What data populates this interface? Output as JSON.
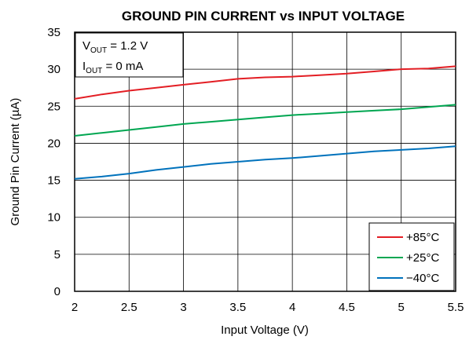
{
  "chart_data": {
    "type": "line",
    "title": "GROUND PIN CURRENT vs INPUT VOLTAGE",
    "xlabel": "Input Voltage (V)",
    "ylabel": "Ground Pin Current (µA)",
    "xlim": [
      2,
      5.5
    ],
    "ylim": [
      0,
      35
    ],
    "xticks": [
      "2",
      "2.5",
      "3",
      "3.5",
      "4",
      "4.5",
      "5",
      "5.5"
    ],
    "yticks": [
      "0",
      "5",
      "10",
      "15",
      "20",
      "25",
      "30",
      "35"
    ],
    "grid": true,
    "legend_position": "bottom-right",
    "annotation": {
      "vout_main": "V",
      "vout_sub": "OUT",
      "vout_value": " = 1.2 V",
      "iout_main": "I",
      "iout_sub": "OUT",
      "iout_value": " = 0 mA"
    },
    "series": [
      {
        "name": "+85°C",
        "color": "#e31e24",
        "x": [
          2.0,
          2.25,
          2.5,
          2.75,
          3.0,
          3.25,
          3.5,
          3.75,
          4.0,
          4.25,
          4.5,
          4.75,
          5.0,
          5.25,
          5.5
        ],
        "y": [
          26.0,
          26.6,
          27.1,
          27.5,
          27.9,
          28.3,
          28.7,
          28.9,
          29.0,
          29.2,
          29.4,
          29.7,
          30.0,
          30.1,
          30.4
        ]
      },
      {
        "name": "+25°C",
        "color": "#00a651",
        "x": [
          2.0,
          2.25,
          2.5,
          2.75,
          3.0,
          3.25,
          3.5,
          3.75,
          4.0,
          4.25,
          4.5,
          4.75,
          5.0,
          5.25,
          5.5
        ],
        "y": [
          21.0,
          21.4,
          21.8,
          22.2,
          22.6,
          22.9,
          23.2,
          23.5,
          23.8,
          24.0,
          24.2,
          24.4,
          24.6,
          24.9,
          25.2
        ]
      },
      {
        "name": "−40°C",
        "color": "#0072bc",
        "x": [
          2.0,
          2.25,
          2.5,
          2.75,
          3.0,
          3.25,
          3.5,
          3.75,
          4.0,
          4.25,
          4.5,
          4.75,
          5.0,
          5.25,
          5.5
        ],
        "y": [
          15.2,
          15.5,
          15.9,
          16.4,
          16.8,
          17.2,
          17.5,
          17.8,
          18.0,
          18.3,
          18.6,
          18.9,
          19.1,
          19.3,
          19.6
        ]
      }
    ]
  }
}
